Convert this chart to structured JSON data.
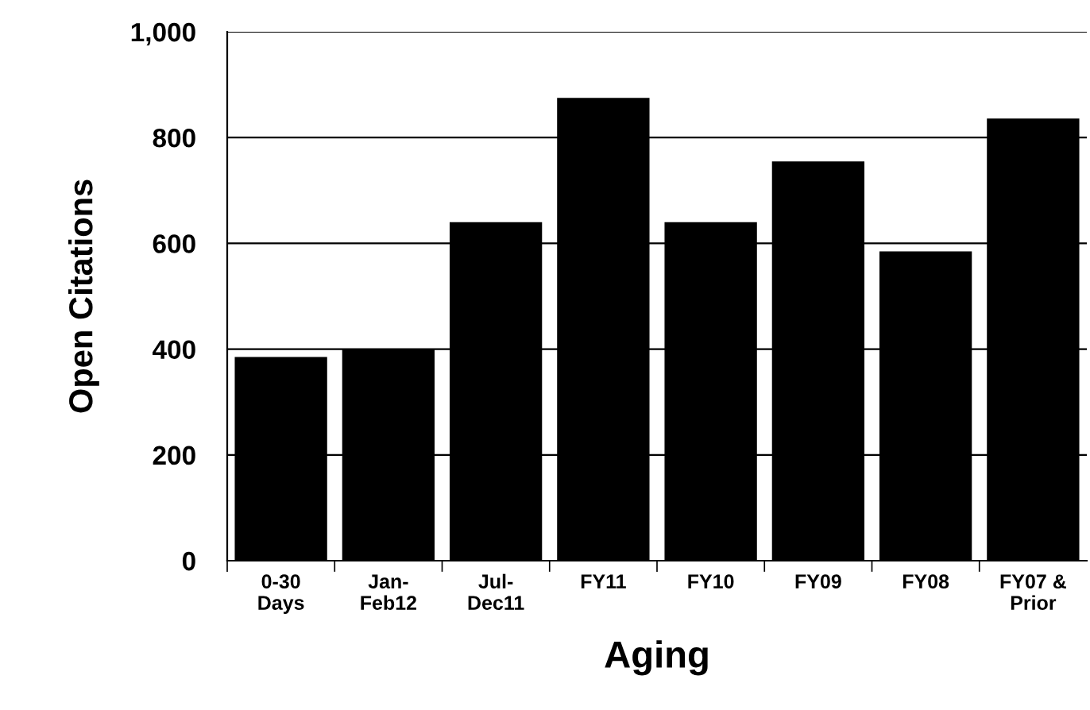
{
  "chart_data": {
    "type": "bar",
    "xlabel": "Aging",
    "ylabel": "Open Citations",
    "categories": [
      "0-30\nDays",
      "Jan-\nFeb12",
      "Jul-\nDec11",
      "FY11",
      "FY10",
      "FY09",
      "FY08",
      "FY07 &\nPrior"
    ],
    "values": [
      385,
      400,
      640,
      875,
      640,
      755,
      585,
      836
    ],
    "color": "#000000",
    "ylim": [
      0,
      1000
    ],
    "yticks": [
      0,
      200,
      400,
      600,
      800,
      {
        "value": 1000,
        "label": "1,000"
      }
    ],
    "grid": "y"
  }
}
